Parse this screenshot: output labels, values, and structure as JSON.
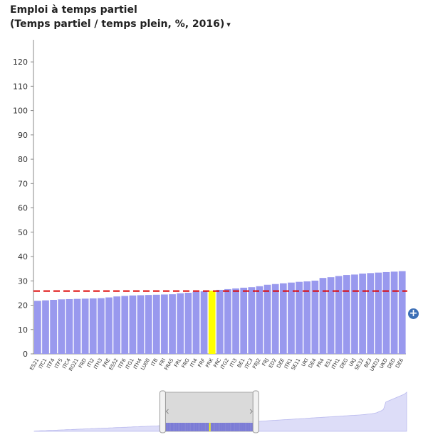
{
  "header": {
    "title_line1": "Emploi à temps partiel",
    "title_line2": "(Temps partiel / temps plein, %, 2016)",
    "dropdown_caret": "▾"
  },
  "colors": {
    "bar": "#9999ee",
    "highlight": "#ffff00",
    "reference_line": "#dd0000",
    "navigator_fill": "#ddddf8",
    "navigator_window": "#d3d3d3"
  },
  "controls": {
    "expand_icon": "plus-circle-icon",
    "expand_label": "+"
  },
  "chart_data": {
    "type": "bar",
    "title": "Emploi à temps partiel (Temps partiel / temps plein, %, 2016)",
    "xlabel": "",
    "ylabel": "",
    "ylim": [
      0,
      125
    ],
    "yticks": [
      0,
      10,
      20,
      30,
      40,
      50,
      60,
      70,
      80,
      90,
      100,
      110,
      120
    ],
    "grid": false,
    "reference_value": 25.8,
    "highlight_category": "FRK",
    "categories": [
      "ES21",
      "ITC1",
      "ITF4",
      "ITF5",
      "ITC4",
      "RO21",
      "FRD",
      "ITI2",
      "ITH3",
      "FRE",
      "ES52",
      "ITF6",
      "ITG1",
      "ITH4",
      "LU00",
      "ITB",
      "FRI",
      "FRA5",
      "FRL",
      "FRG",
      "ITI4",
      "FRF",
      "FRK",
      "FRC",
      "ITG2",
      "ITI3",
      "BE1",
      "ITC3",
      "FRJ2",
      "FRJ",
      "ED2",
      "DEE",
      "ITK1",
      "SE11",
      "UKI",
      "DE4",
      "FR4",
      "ES1",
      "ITH1",
      "DEG",
      "UKJ",
      "SE32",
      "BE3",
      "UKD3",
      "UKD",
      "DED",
      "DE6"
    ],
    "values": [
      21.8,
      22.0,
      22.2,
      22.4,
      22.5,
      22.6,
      22.7,
      22.8,
      22.9,
      23.2,
      23.6,
      23.8,
      24.0,
      24.1,
      24.2,
      24.3,
      24.4,
      24.5,
      24.9,
      25.1,
      25.5,
      25.7,
      26.0,
      26.3,
      26.6,
      26.9,
      27.2,
      27.4,
      27.8,
      28.4,
      28.7,
      29.0,
      29.3,
      29.6,
      29.8,
      30.1,
      31.2,
      31.5,
      32.0,
      32.4,
      32.6,
      33.0,
      33.2,
      33.4,
      33.6,
      33.8,
      34.0
    ]
  },
  "navigator": {
    "values": [
      0.5,
      0.7,
      0.9,
      1.1,
      1.3,
      1.5,
      1.7,
      1.9,
      2.1,
      2.3,
      2.5,
      2.7,
      2.9,
      3.1,
      3.3,
      3.5,
      3.7,
      3.9,
      4.1,
      4.3,
      4.5,
      4.7,
      4.9,
      5.1,
      5.3,
      5.5,
      5.7,
      5.9,
      6.1,
      6.3,
      6.5,
      6.7,
      6.9,
      7.1,
      7.3,
      7.5,
      7.7,
      7.9,
      8.1,
      8.3,
      8.5,
      8.7,
      8.9,
      9.1,
      9.3,
      9.5,
      9.7,
      9.9,
      10.1,
      10.3,
      10.5,
      10.7,
      10.9,
      11.1,
      11.3,
      11.5,
      11.7,
      11.9,
      12.1,
      12.3,
      12.5,
      12.7,
      12.9,
      13.1,
      13.3,
      13.5,
      13.7,
      13.9,
      14.1,
      14.3,
      14.5,
      14.7,
      14.9,
      15.1,
      15.3,
      15.5,
      15.7,
      15.9,
      16.1,
      16.3,
      16.5,
      16.7,
      16.9,
      17.1,
      17.3,
      17.5,
      17.7,
      17.9,
      18.1,
      18.3,
      18.5,
      18.7,
      18.9,
      19.2,
      19.5,
      19.8,
      20.1,
      20.4,
      20.7,
      21.0,
      21.3,
      21.6,
      21.9,
      22.2,
      22.5,
      22.8,
      23.1,
      23.4,
      23.7,
      24.0,
      24.3,
      24.6,
      24.9,
      25.2,
      25.5,
      25.8,
      26.1,
      26.4,
      26.7,
      27.0,
      27.3,
      27.6,
      27.9,
      28.2,
      28.5,
      28.8,
      29.1,
      29.4,
      29.7,
      30.0,
      30.3,
      30.6,
      30.9,
      31.2,
      31.5,
      31.8,
      32.1,
      32.4,
      32.7,
      33.0,
      33.3,
      33.6,
      34.0,
      34.5,
      35.0,
      35.5,
      36.0,
      37.0,
      38.0,
      40.0,
      42.0,
      45.0,
      60.0,
      62.0,
      64.0,
      66.0,
      68.0,
      70.0,
      72.0,
      74.0,
      76.0,
      80.0
    ],
    "window_range": [
      0.345,
      0.595
    ]
  }
}
